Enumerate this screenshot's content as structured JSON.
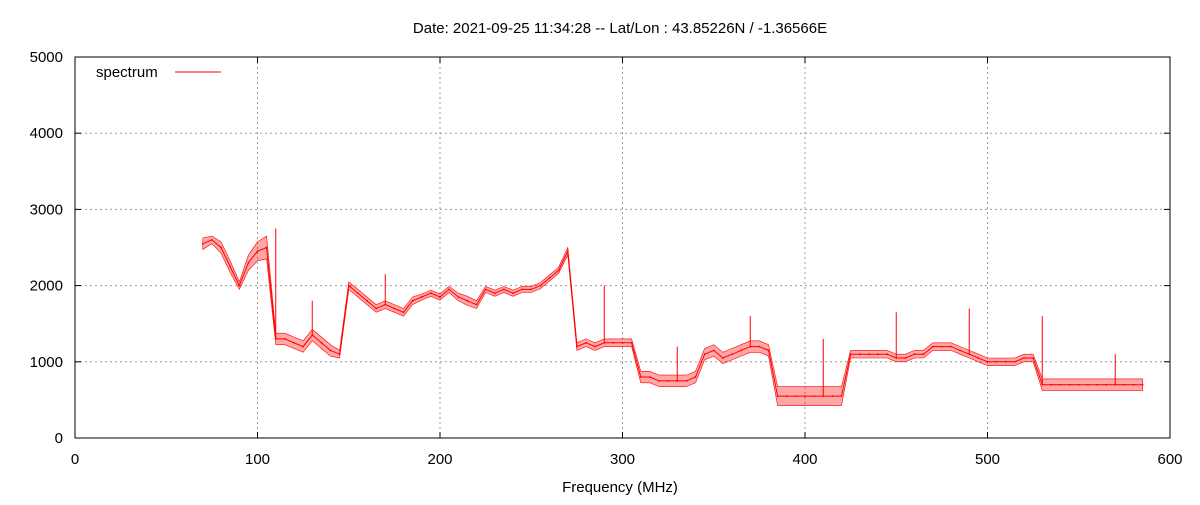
{
  "chart_data": {
    "type": "line",
    "title": "Date: 2021-09-25 11:34:28  --  Lat/Lon : 43.85226N / -1.36566E",
    "xlabel": "Frequency (MHz)",
    "ylabel": "",
    "xlim": [
      0,
      600
    ],
    "ylim": [
      0,
      5000
    ],
    "x_ticks": [
      0,
      100,
      200,
      300,
      400,
      500,
      600
    ],
    "y_ticks": [
      0,
      1000,
      2000,
      3000,
      4000,
      5000
    ],
    "grid": true,
    "legend_position": "top-left",
    "series": [
      {
        "name": "spectrum",
        "color": "#ff0000",
        "x_start": 70,
        "x_end": 590,
        "x_step": 5,
        "values": [
          2550,
          2600,
          2500,
          2250,
          2000,
          2300,
          2450,
          2500,
          1300,
          1300,
          1250,
          1200,
          1350,
          1250,
          1150,
          1100,
          2000,
          1900,
          1800,
          1700,
          1750,
          1700,
          1650,
          1800,
          1850,
          1900,
          1850,
          1950,
          1850,
          1800,
          1750,
          1950,
          1900,
          1950,
          1900,
          1950,
          1950,
          2000,
          2100,
          2200,
          2450,
          1200,
          1250,
          1200,
          1250,
          1250,
          1250,
          1250,
          800,
          800,
          750,
          750,
          750,
          750,
          800,
          1100,
          1150,
          1050,
          1100,
          1150,
          1200,
          1200,
          1150,
          550,
          550,
          550,
          550,
          550,
          550,
          550,
          550,
          1100,
          1100,
          1100,
          1100,
          1100,
          1050,
          1050,
          1100,
          1100,
          1200,
          1200,
          1200,
          1150,
          1100,
          1050,
          1000,
          1000,
          1000,
          1000,
          1050,
          1050,
          700,
          700,
          700,
          700,
          700,
          700,
          700,
          700,
          700,
          700,
          700,
          700
        ],
        "noise": [
          150,
          100,
          150,
          150,
          100,
          200,
          250,
          300,
          150,
          150,
          150,
          150,
          150,
          150,
          150,
          100,
          100,
          100,
          100,
          100,
          100,
          100,
          100,
          100,
          80,
          80,
          80,
          80,
          100,
          120,
          100,
          80,
          80,
          80,
          80,
          80,
          80,
          80,
          80,
          80,
          100,
          100,
          100,
          100,
          100,
          100,
          100,
          100,
          150,
          150,
          150,
          150,
          150,
          150,
          150,
          150,
          150,
          150,
          150,
          150,
          150,
          150,
          150,
          250,
          250,
          250,
          250,
          250,
          250,
          250,
          250,
          100,
          100,
          100,
          100,
          100,
          100,
          100,
          100,
          100,
          100,
          100,
          100,
          100,
          100,
          100,
          100,
          100,
          100,
          100,
          100,
          100,
          150,
          150,
          150,
          150,
          150,
          150,
          150,
          150,
          150,
          150,
          150,
          150
        ],
        "spikes": [
          {
            "x": 110,
            "y": 2750
          },
          {
            "x": 130,
            "y": 1800
          },
          {
            "x": 170,
            "y": 2150
          },
          {
            "x": 290,
            "y": 2000
          },
          {
            "x": 330,
            "y": 1200
          },
          {
            "x": 370,
            "y": 1600
          },
          {
            "x": 410,
            "y": 1300
          },
          {
            "x": 450,
            "y": 1650
          },
          {
            "x": 490,
            "y": 1700
          },
          {
            "x": 530,
            "y": 1600
          },
          {
            "x": 570,
            "y": 1100
          }
        ]
      }
    ]
  }
}
